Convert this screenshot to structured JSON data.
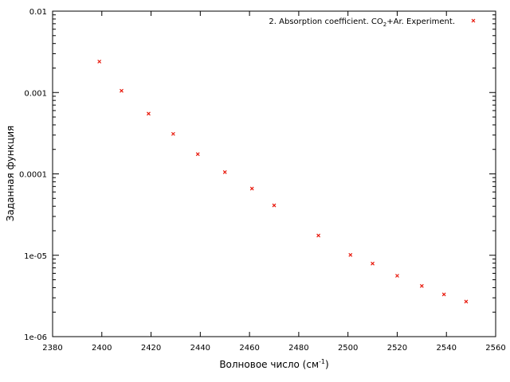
{
  "chart_data": {
    "type": "scatter",
    "xlabel_main": "Волновое число (см",
    "xlabel_sup": "-1",
    "xlabel_end": ")",
    "ylabel": "Заданная функция",
    "xlim": [
      2380,
      2560
    ],
    "ylim": [
      1e-06,
      0.01
    ],
    "y_scale": "log",
    "x_ticks": [
      2380,
      2400,
      2420,
      2440,
      2460,
      2480,
      2500,
      2520,
      2540,
      2560
    ],
    "x_tick_labels": [
      "2380",
      "2400",
      "2420",
      "2440",
      "2460",
      "2480",
      "2500",
      "2520",
      "2540",
      "2560"
    ],
    "y_ticks": [
      1e-06,
      1e-05,
      0.0001,
      0.001,
      0.01
    ],
    "y_tick_labels": [
      "1e-06",
      "1e-05",
      "0.0001",
      "0.001",
      "0.01"
    ],
    "grid": false,
    "legend_position": "top-right",
    "series": [
      {
        "legend_pre": "2. Absorption coefficient. CO",
        "legend_sub": "2",
        "legend_post": "+Ar. Experiment.",
        "color": "#e8190c",
        "marker": "cross",
        "x": [
          2399,
          2408,
          2419,
          2429,
          2439,
          2450,
          2461,
          2470,
          2488,
          2501,
          2510,
          2520,
          2530,
          2539,
          2548
        ],
        "y": [
          0.0024,
          0.00105,
          0.00055,
          0.00031,
          0.000175,
          0.000105,
          6.6e-05,
          4.1e-05,
          1.75e-05,
          1.01e-05,
          7.9e-06,
          5.6e-06,
          4.2e-06,
          3.3e-06,
          2.7e-06
        ]
      }
    ]
  }
}
